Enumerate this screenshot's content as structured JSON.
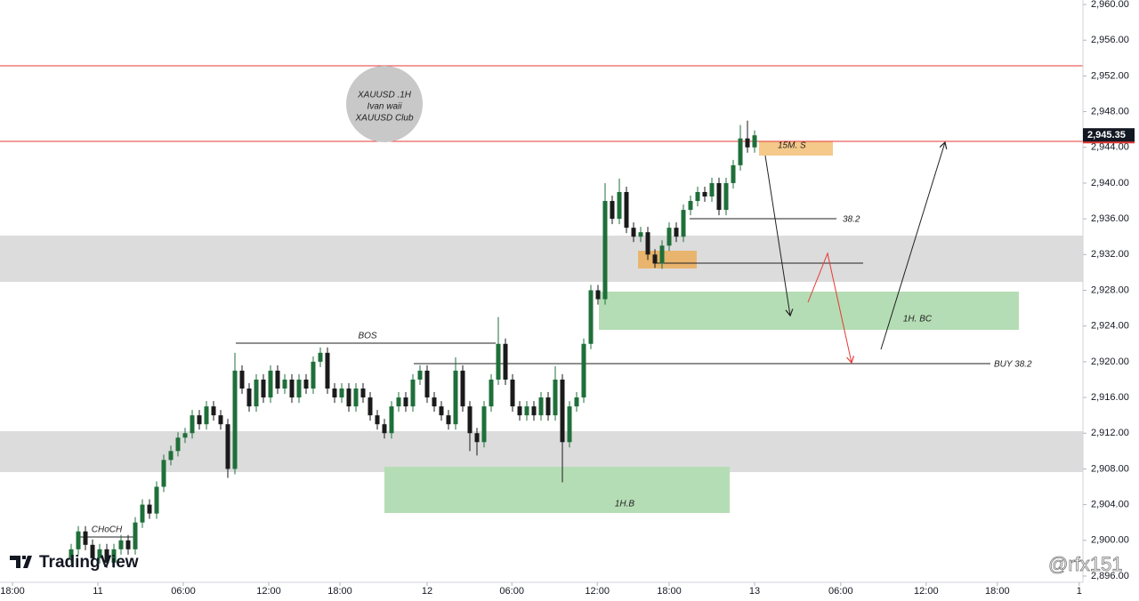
{
  "chart_data": {
    "type": "candlestick",
    "x": [
      10,
      11,
      12,
      13,
      14,
      15,
      16,
      17,
      18,
      19,
      20,
      21,
      22,
      23,
      24,
      25,
      26,
      27,
      28,
      29,
      30,
      31,
      32,
      33,
      34,
      35,
      36,
      37,
      38,
      39,
      40,
      41,
      42,
      43,
      44,
      45,
      46,
      47,
      48,
      49,
      50,
      51,
      52,
      53,
      54,
      55,
      56,
      57,
      58,
      59,
      60,
      61,
      62,
      63,
      64,
      65,
      66,
      67,
      68,
      69,
      70,
      71,
      72,
      73,
      74,
      75,
      76,
      77,
      78,
      79,
      80,
      81,
      82,
      83,
      84,
      85,
      86,
      87,
      88,
      89,
      90,
      91,
      92,
      93,
      94,
      95,
      96,
      97,
      98,
      99,
      100,
      101,
      102,
      103,
      104,
      105,
      106
    ],
    "open": [
      2898,
      2899,
      2901,
      2899.5,
      2898,
      2899,
      2897.5,
      2899,
      2900,
      2899,
      2902,
      2904,
      2903,
      2906,
      2909,
      2910,
      2911.5,
      2912,
      2914,
      2913,
      2915,
      2914,
      2913,
      2908,
      2919,
      2917,
      2915,
      2918,
      2916,
      2919,
      2917,
      2918,
      2916,
      2918,
      2917,
      2920,
      2921,
      2917,
      2916,
      2917,
      2915,
      2917,
      2916,
      2914,
      2913,
      2912,
      2915,
      2916,
      2915,
      2918,
      2919,
      2916,
      2915,
      2914,
      2913,
      2919,
      2915,
      2912,
      2911,
      2915,
      2918,
      2922,
      2918,
      2915,
      2914,
      2915,
      2914,
      2916,
      2914,
      2918,
      2911,
      2915,
      2916,
      2922,
      2928,
      2927,
      2938,
      2936,
      2939,
      2935,
      2934,
      2934.5,
      2932,
      2931,
      2933,
      2935,
      2934,
      2937,
      2938,
      2939,
      2938.5,
      2940,
      2937,
      2940,
      2942,
      2945,
      2944
    ],
    "high": [
      2899.6,
      2901.6,
      2901.6,
      2900.1,
      2899.6,
      2899.6,
      2899.6,
      2900.6,
      2900.6,
      2902.6,
      2904.6,
      2904.6,
      2906.6,
      2909.6,
      2910.6,
      2912.1,
      2912.6,
      2914.6,
      2914.6,
      2915.6,
      2915.6,
      2914.6,
      2913.6,
      2921,
      2919.6,
      2917.6,
      2918.6,
      2918.6,
      2919.6,
      2919.6,
      2918.6,
      2918.6,
      2918.6,
      2918.6,
      2920.6,
      2921.6,
      2921.6,
      2917.6,
      2917.6,
      2917.6,
      2917.6,
      2917.6,
      2916.6,
      2914.6,
      2913.6,
      2915.6,
      2916.6,
      2916.6,
      2918.6,
      2919.6,
      2919.6,
      2916.6,
      2915.6,
      2914.6,
      2920.5,
      2919.6,
      2915.6,
      2912.6,
      2915.6,
      2918.6,
      2925,
      2922.6,
      2918.6,
      2915.6,
      2915.6,
      2915.6,
      2916.6,
      2916.6,
      2919.5,
      2918.6,
      2915.6,
      2916.6,
      2922.6,
      2928.6,
      2928.6,
      2940,
      2938.6,
      2940.5,
      2939.6,
      2935.6,
      2935.1,
      2935.1,
      2932.6,
      2933.6,
      2935.6,
      2935.6,
      2937.6,
      2938.6,
      2939.6,
      2939.6,
      2940.6,
      2940.6,
      2940.6,
      2942.6,
      2946.5,
      2947,
      2945.9
    ],
    "low": [
      2897.4,
      2898.4,
      2898.9,
      2897.4,
      2897.4,
      2896.9,
      2896.9,
      2898.4,
      2898.4,
      2898.4,
      2901.4,
      2902.4,
      2902.4,
      2905.4,
      2908.4,
      2909.4,
      2910.9,
      2911.4,
      2912.4,
      2912.4,
      2913.4,
      2912.4,
      2907,
      2907.4,
      2916.4,
      2914.4,
      2914.4,
      2915.4,
      2915.4,
      2916.4,
      2916.4,
      2915.4,
      2915.4,
      2916.4,
      2916.4,
      2919.4,
      2916.4,
      2915.4,
      2915.4,
      2914.4,
      2914.4,
      2915.4,
      2913.4,
      2912.4,
      2911.4,
      2911.4,
      2914.4,
      2914.4,
      2914.4,
      2917.4,
      2915.4,
      2914.4,
      2913.4,
      2912.4,
      2912.4,
      2914.4,
      2910,
      2909.5,
      2910.4,
      2914.4,
      2917.4,
      2917.4,
      2914.4,
      2913.4,
      2913.4,
      2913.4,
      2913.4,
      2913.4,
      2913.4,
      2906.5,
      2910.4,
      2914.4,
      2915.4,
      2921.4,
      2926.4,
      2926.4,
      2935.4,
      2935.4,
      2934.4,
      2933.4,
      2933.4,
      2931.4,
      2930.5,
      2930.4,
      2932.4,
      2933.4,
      2933.4,
      2936.4,
      2937.4,
      2937.9,
      2937.9,
      2936.4,
      2936.4,
      2939.4,
      2941.4,
      2943.4,
      2943.4
    ],
    "close": [
      2899,
      2901,
      2899.5,
      2898,
      2899,
      2897.5,
      2899,
      2900,
      2899,
      2902,
      2904,
      2903,
      2906,
      2909,
      2910,
      2911.5,
      2912,
      2914,
      2913,
      2915,
      2914,
      2913,
      2908,
      2919,
      2917,
      2915,
      2918,
      2916,
      2919,
      2917,
      2918,
      2916,
      2918,
      2917,
      2920,
      2921,
      2917,
      2916,
      2917,
      2915,
      2917,
      2916,
      2914,
      2913,
      2912,
      2915,
      2916,
      2915,
      2918,
      2919,
      2916,
      2915,
      2914,
      2913,
      2919,
      2915,
      2912,
      2911,
      2915,
      2918,
      2922,
      2918,
      2915,
      2914,
      2915,
      2914,
      2916,
      2914,
      2918,
      2911,
      2915,
      2916,
      2922,
      2928,
      2927,
      2938,
      2936,
      2939,
      2935,
      2934,
      2934.5,
      2932,
      2931,
      2933,
      2935,
      2934,
      2937,
      2938,
      2939,
      2938.5,
      2940,
      2937,
      2940,
      2942,
      2945,
      2944,
      2945.35
    ],
    "up_color": "#1f6f3a",
    "down_color": "#1a1a1a",
    "grid": false,
    "xlim": [
      0,
      152
    ],
    "xticks": [
      {
        "value": 1.75,
        "label": "18:00"
      },
      {
        "value": 13.75,
        "label": "11"
      },
      {
        "value": 25.75,
        "label": "06:00"
      },
      {
        "value": 37.75,
        "label": "12:00"
      },
      {
        "value": 47.75,
        "label": "18:00"
      },
      {
        "value": 60,
        "label": "12"
      },
      {
        "value": 71.9,
        "label": "06:00"
      },
      {
        "value": 83.9,
        "label": "12:00"
      },
      {
        "value": 94,
        "label": "18:00"
      },
      {
        "value": 106,
        "label": "13"
      },
      {
        "value": 118.1,
        "label": "06:00"
      },
      {
        "value": 130.1,
        "label": "12:00"
      },
      {
        "value": 140.1,
        "label": "18:00"
      },
      {
        "value": 151.6,
        "label": "1"
      }
    ],
    "ylim": [
      2895.3,
      2960.5
    ],
    "yticks": [
      {
        "value": 2896,
        "label": "2,896.00"
      },
      {
        "value": 2900,
        "label": "2,900.00"
      },
      {
        "value": 2904,
        "label": "2,904.00"
      },
      {
        "value": 2908,
        "label": "2,908.00"
      },
      {
        "value": 2912,
        "label": "2,912.00"
      },
      {
        "value": 2916,
        "label": "2,916.00"
      },
      {
        "value": 2920,
        "label": "2,920.00"
      },
      {
        "value": 2924,
        "label": "2,924.00"
      },
      {
        "value": 2928,
        "label": "2,928.00"
      },
      {
        "value": 2932,
        "label": "2,932.00"
      },
      {
        "value": 2936,
        "label": "2,936.00"
      },
      {
        "value": 2940,
        "label": "2,940.00"
      },
      {
        "value": 2944,
        "label": "2,944.00"
      },
      {
        "value": 2948,
        "label": "2,948.00"
      },
      {
        "value": 2952,
        "label": "2,952.00"
      },
      {
        "value": 2956,
        "label": "2,956.00"
      },
      {
        "value": 2960,
        "label": "2,960.00"
      }
    ],
    "last_price": {
      "value": 2945.35,
      "label": "2,945.35"
    },
    "annotations": {
      "circle": [
        "XAUUSD .1H",
        "Ivan waii",
        "XAUUSD Club"
      ],
      "bos": "BOS",
      "choch": "CHoCH",
      "fib": "38.2",
      "zone_15m": "15M. S",
      "zone_1h_bc": "1H. BC",
      "zone_1h_b": "1H.B",
      "buy": "BUY 38.2"
    }
  },
  "branding": {
    "logo": "TradingView",
    "watermark": "@rfx151"
  }
}
